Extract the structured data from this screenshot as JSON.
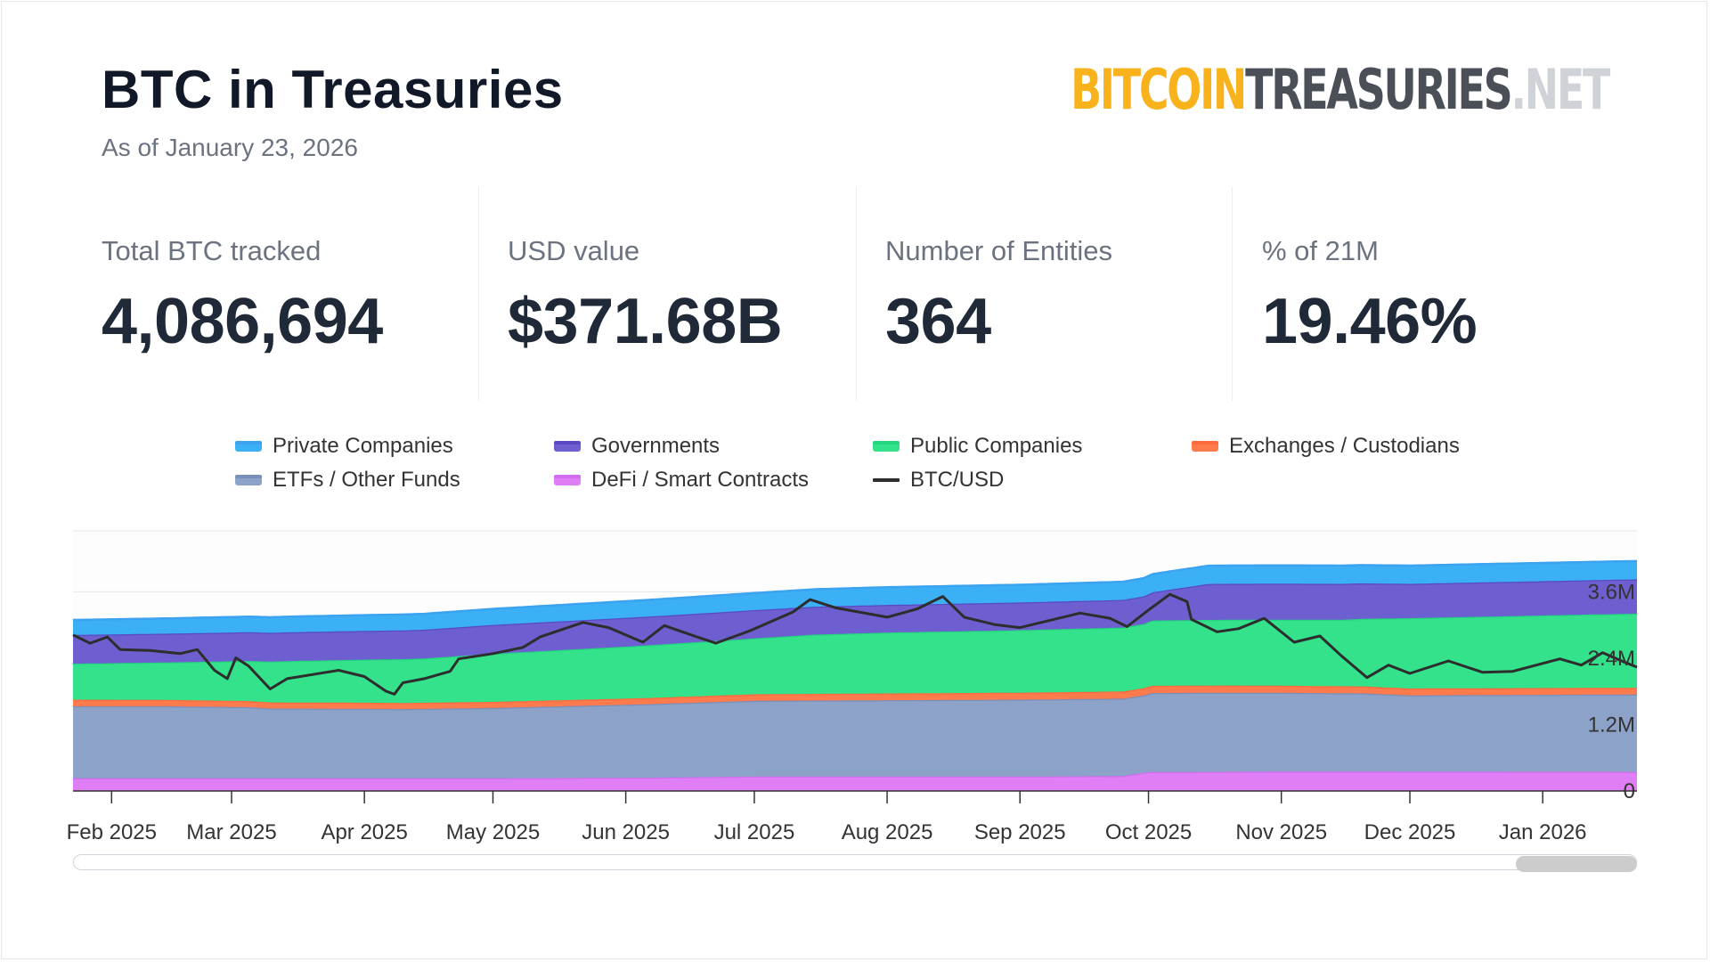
{
  "header": {
    "title": "BTC in Treasuries",
    "subtitle": "As of January 23, 2026",
    "logo": {
      "part1": "BITCOIN",
      "part2": "TREASURIES",
      "part3": ".NET"
    }
  },
  "stats": [
    {
      "label": "Total BTC tracked",
      "value": "4,086,694"
    },
    {
      "label": "USD value",
      "value": "$371.68B"
    },
    {
      "label": "Number of Entities",
      "value": "364"
    },
    {
      "label": "% of 21M",
      "value": "19.46%"
    }
  ],
  "legend": [
    {
      "label": "Private Companies",
      "color": "#3cb0f5",
      "edge": "#3ba3f0"
    },
    {
      "label": "Governments",
      "color": "#6d5fcf",
      "edge": "#5a49c4"
    },
    {
      "label": "Public Companies",
      "color": "#34e28c",
      "edge": "#22d77e"
    },
    {
      "label": "Exchanges / Custodians",
      "color": "#ff7a4d",
      "edge": "#ff6a3a"
    },
    {
      "label": "ETFs / Other Funds",
      "color": "#8da2c8",
      "edge": "#7a8fb8"
    },
    {
      "label": "DeFi / Smart Contracts",
      "color": "#e07ef5",
      "edge": "#d36cf0"
    },
    {
      "label": "BTC/USD",
      "color": "#2d2d2d"
    }
  ],
  "chart_data": {
    "type": "area",
    "stacked": true,
    "x_start": "2025-01-23",
    "x_end": "2026-01-23",
    "y_axis": {
      "ticks": [
        0,
        1200000,
        2400000,
        3600000
      ],
      "tick_labels": [
        "0",
        "1.2M",
        "2.4M",
        "3.6M"
      ],
      "ylim": [
        0,
        4700000
      ],
      "position": "right"
    },
    "x_ticks": [
      {
        "date": "2025-02-01",
        "label": "Feb 2025"
      },
      {
        "date": "2025-03-01",
        "label": "Mar 2025"
      },
      {
        "date": "2025-04-01",
        "label": "Apr 2025"
      },
      {
        "date": "2025-05-01",
        "label": "May 2025"
      },
      {
        "date": "2025-06-01",
        "label": "Jun 2025"
      },
      {
        "date": "2025-07-01",
        "label": "Jul 2025"
      },
      {
        "date": "2025-08-01",
        "label": "Aug 2025"
      },
      {
        "date": "2025-09-01",
        "label": "Sep 2025"
      },
      {
        "date": "2025-10-01",
        "label": "Oct 2025"
      },
      {
        "date": "2025-11-01",
        "label": "Nov 2025"
      },
      {
        "date": "2025-12-01",
        "label": "Dec 2025"
      },
      {
        "date": "2026-01-01",
        "label": "Jan 2026"
      }
    ],
    "series": [
      {
        "name": "DeFi / Smart Contracts",
        "points": [
          [
            "2025-01-23",
            230000
          ],
          [
            "2025-03-01",
            230000
          ],
          [
            "2025-05-01",
            230000
          ],
          [
            "2025-06-06",
            240000
          ],
          [
            "2025-07-01",
            260000
          ],
          [
            "2025-09-01",
            260000
          ],
          [
            "2025-09-25",
            270000
          ],
          [
            "2025-10-01",
            340000
          ],
          [
            "2025-11-01",
            350000
          ],
          [
            "2026-01-23",
            345000
          ]
        ]
      },
      {
        "name": "ETFs / Other Funds",
        "points": [
          [
            "2025-01-23",
            1300000
          ],
          [
            "2025-02-15",
            1300000
          ],
          [
            "2025-03-05",
            1285000
          ],
          [
            "2025-03-10",
            1260000
          ],
          [
            "2025-04-01",
            1255000
          ],
          [
            "2025-04-10",
            1250000
          ],
          [
            "2025-05-01",
            1270000
          ],
          [
            "2025-06-01",
            1320000
          ],
          [
            "2025-07-01",
            1370000
          ],
          [
            "2025-08-01",
            1380000
          ],
          [
            "2025-09-01",
            1390000
          ],
          [
            "2025-09-30",
            1400000
          ],
          [
            "2025-10-02",
            1430000
          ],
          [
            "2025-10-20",
            1430000
          ],
          [
            "2025-11-20",
            1415000
          ],
          [
            "2025-12-01",
            1380000
          ],
          [
            "2026-01-23",
            1400000
          ]
        ]
      },
      {
        "name": "Exchanges / Custodians",
        "points": [
          [
            "2025-01-23",
            120000
          ],
          [
            "2025-03-01",
            110000
          ],
          [
            "2025-04-01",
            110000
          ],
          [
            "2025-06-01",
            110000
          ],
          [
            "2025-07-15",
            120000
          ],
          [
            "2025-10-01",
            130000
          ],
          [
            "2025-10-15",
            130000
          ],
          [
            "2025-11-25",
            125000
          ],
          [
            "2026-01-23",
            120000
          ]
        ]
      },
      {
        "name": "Public Companies",
        "points": [
          [
            "2025-01-23",
            650000
          ],
          [
            "2025-02-15",
            680000
          ],
          [
            "2025-03-15",
            750000
          ],
          [
            "2025-04-15",
            800000
          ],
          [
            "2025-05-01",
            870000
          ],
          [
            "2025-06-01",
            940000
          ],
          [
            "2025-07-01",
            1010000
          ],
          [
            "2025-07-15",
            1070000
          ],
          [
            "2025-08-01",
            1100000
          ],
          [
            "2025-09-01",
            1130000
          ],
          [
            "2025-09-30",
            1160000
          ],
          [
            "2025-10-02",
            1180000
          ],
          [
            "2025-11-15",
            1200000
          ],
          [
            "2025-12-01",
            1270000
          ],
          [
            "2026-01-23",
            1340000
          ]
        ]
      },
      {
        "name": "Governments",
        "points": [
          [
            "2025-01-23",
            520000
          ],
          [
            "2025-03-01",
            520000
          ],
          [
            "2025-04-01",
            520000
          ],
          [
            "2025-05-01",
            520000
          ],
          [
            "2025-06-01",
            520000
          ],
          [
            "2025-07-01",
            510000
          ],
          [
            "2025-08-01",
            500000
          ],
          [
            "2025-09-01",
            500000
          ],
          [
            "2025-10-01",
            500000
          ],
          [
            "2025-10-15",
            650000
          ],
          [
            "2025-11-15",
            650000
          ],
          [
            "2025-12-01",
            620000
          ],
          [
            "2026-01-23",
            620000
          ]
        ]
      },
      {
        "name": "Private Companies",
        "points": [
          [
            "2025-01-23",
            270000
          ],
          [
            "2025-03-01",
            280000
          ],
          [
            "2025-05-01",
            290000
          ],
          [
            "2025-06-01",
            300000
          ],
          [
            "2025-07-01",
            310000
          ],
          [
            "2025-08-01",
            320000
          ],
          [
            "2025-09-01",
            320000
          ],
          [
            "2025-10-01",
            330000
          ],
          [
            "2025-10-15",
            330000
          ],
          [
            "2026-01-23",
            330000
          ]
        ]
      }
    ],
    "btc_usd": {
      "name": "BTC/USD",
      "points": [
        [
          "2025-01-23",
          105000
        ],
        [
          "2025-01-27",
          101000
        ],
        [
          "2025-01-31",
          104000
        ],
        [
          "2025-02-03",
          98000
        ],
        [
          "2025-02-10",
          97500
        ],
        [
          "2025-02-17",
          96000
        ],
        [
          "2025-02-21",
          98000
        ],
        [
          "2025-02-25",
          88000
        ],
        [
          "2025-02-28",
          84000
        ],
        [
          "2025-03-02",
          94000
        ],
        [
          "2025-03-05",
          90000
        ],
        [
          "2025-03-10",
          79000
        ],
        [
          "2025-03-14",
          84000
        ],
        [
          "2025-03-20",
          86000
        ],
        [
          "2025-03-26",
          88000
        ],
        [
          "2025-04-01",
          85000
        ],
        [
          "2025-04-06",
          78000
        ],
        [
          "2025-04-08",
          76500
        ],
        [
          "2025-04-10",
          82000
        ],
        [
          "2025-04-15",
          84000
        ],
        [
          "2025-04-21",
          87500
        ],
        [
          "2025-04-23",
          93500
        ],
        [
          "2025-05-01",
          96000
        ],
        [
          "2025-05-08",
          99000
        ],
        [
          "2025-05-12",
          104000
        ],
        [
          "2025-05-22",
          111000
        ],
        [
          "2025-05-28",
          108500
        ],
        [
          "2025-06-05",
          101500
        ],
        [
          "2025-06-10",
          109500
        ],
        [
          "2025-06-17",
          104500
        ],
        [
          "2025-06-22",
          101000
        ],
        [
          "2025-06-30",
          107000
        ],
        [
          "2025-07-10",
          116000
        ],
        [
          "2025-07-14",
          122000
        ],
        [
          "2025-07-20",
          118000
        ],
        [
          "2025-08-01",
          113500
        ],
        [
          "2025-08-08",
          117500
        ],
        [
          "2025-08-14",
          123500
        ],
        [
          "2025-08-19",
          113500
        ],
        [
          "2025-08-26",
          110000
        ],
        [
          "2025-09-01",
          108500
        ],
        [
          "2025-09-08",
          112000
        ],
        [
          "2025-09-15",
          115500
        ],
        [
          "2025-09-22",
          113000
        ],
        [
          "2025-09-26",
          109000
        ],
        [
          "2025-10-01",
          117000
        ],
        [
          "2025-10-06",
          124500
        ],
        [
          "2025-10-10",
          121000
        ],
        [
          "2025-10-11",
          112500
        ],
        [
          "2025-10-17",
          106500
        ],
        [
          "2025-10-22",
          108000
        ],
        [
          "2025-10-28",
          113000
        ],
        [
          "2025-11-04",
          101500
        ],
        [
          "2025-11-10",
          104500
        ],
        [
          "2025-11-15",
          95000
        ],
        [
          "2025-11-21",
          84500
        ],
        [
          "2025-11-26",
          90500
        ],
        [
          "2025-12-01",
          86500
        ],
        [
          "2025-12-10",
          92500
        ],
        [
          "2025-12-18",
          87000
        ],
        [
          "2025-12-25",
          87500
        ],
        [
          "2026-01-05",
          93500
        ],
        [
          "2026-01-10",
          90500
        ],
        [
          "2026-01-15",
          96500
        ],
        [
          "2026-01-20",
          92000
        ],
        [
          "2026-01-23",
          89500
        ]
      ]
    }
  }
}
